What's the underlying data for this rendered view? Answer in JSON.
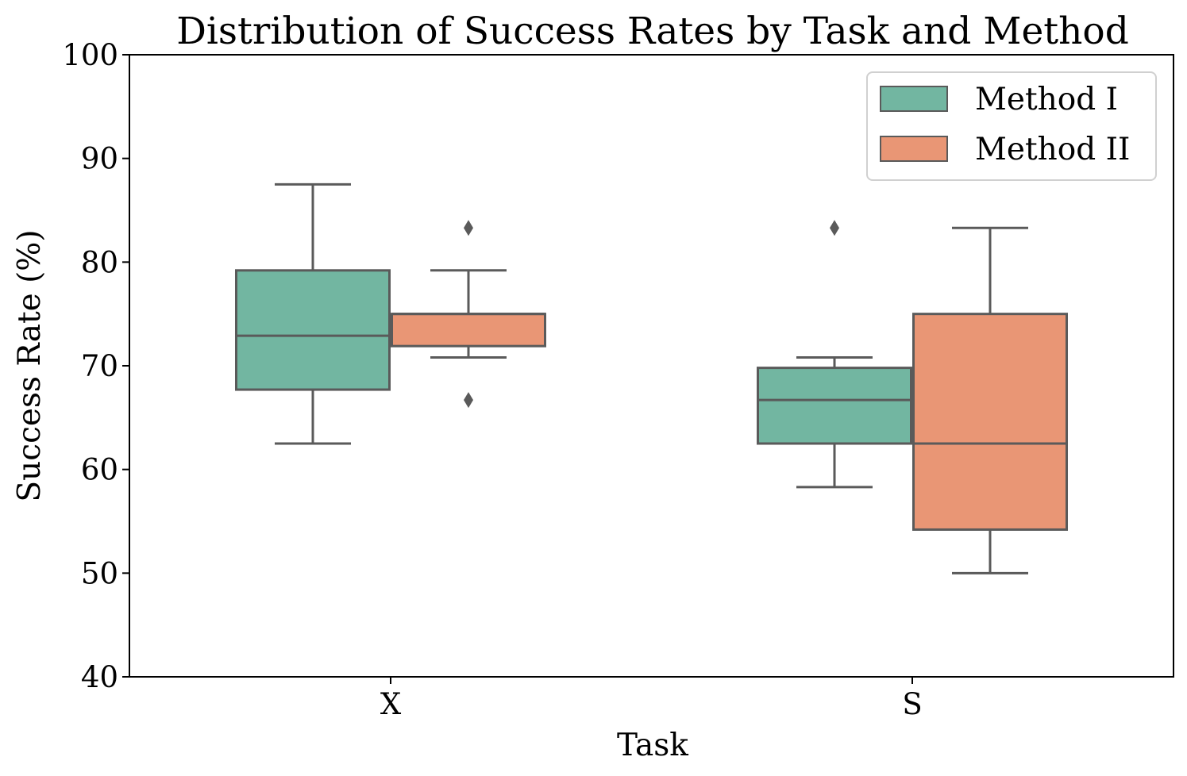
{
  "chart_data": {
    "type": "box",
    "title": "Distribution of Success Rates by Task and Method",
    "xlabel": "Task",
    "ylabel": "Success Rate (%)",
    "ylim": [
      40,
      100
    ],
    "y_ticks": [
      40,
      50,
      60,
      70,
      80,
      90,
      100
    ],
    "y_tick_labels": [
      "40",
      "50",
      "60",
      "70",
      "80",
      "90",
      "100"
    ],
    "categories": [
      "X",
      "S"
    ],
    "grid": false,
    "legend_position": "top-right",
    "series": [
      {
        "name": "Method I",
        "color": "#72b6a1",
        "boxes": [
          {
            "category": "X",
            "whisker_low": 62.5,
            "q1": 67.7,
            "median": 72.9,
            "q3": 79.2,
            "whisker_high": 87.5,
            "outliers": []
          },
          {
            "category": "S",
            "whisker_low": 58.3,
            "q1": 62.5,
            "median": 66.7,
            "q3": 69.8,
            "whisker_high": 70.8,
            "outliers": [
              83.3
            ]
          }
        ]
      },
      {
        "name": "Method II",
        "color": "#e99675",
        "boxes": [
          {
            "category": "X",
            "whisker_low": 70.8,
            "q1": 71.9,
            "median": 75.0,
            "q3": 75.0,
            "whisker_high": 79.2,
            "outliers": [
              83.3,
              66.7
            ]
          },
          {
            "category": "S",
            "whisker_low": 50.0,
            "q1": 54.2,
            "median": 62.5,
            "q3": 75.0,
            "whisker_high": 83.3,
            "outliers": []
          }
        ]
      }
    ],
    "line_color": "#5a5a5a"
  }
}
